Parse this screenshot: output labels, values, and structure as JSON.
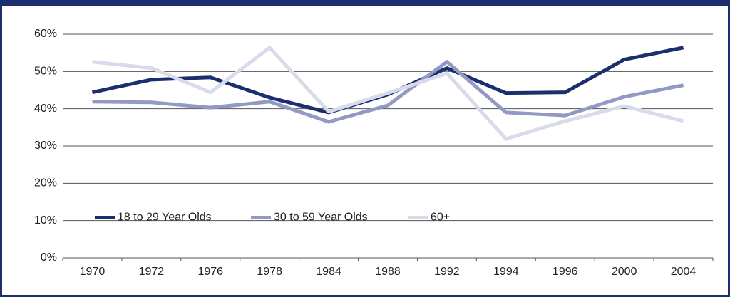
{
  "chart_data": {
    "type": "line",
    "categories": [
      "1970",
      "1972",
      "1976",
      "1978",
      "1984",
      "1988",
      "1992",
      "1994",
      "1996",
      "2000",
      "2004"
    ],
    "series": [
      {
        "name": "18 to 29 Year Olds",
        "color": "#1b2f6e",
        "values": [
          44.4,
          47.8,
          48.4,
          43,
          39,
          43.8,
          50.9,
          44.2,
          44.4,
          53.2,
          56.4
        ]
      },
      {
        "name": "30 to 59 Year Olds",
        "color": "#9499c4",
        "values": [
          41.9,
          41.7,
          40.3,
          41.9,
          36.5,
          40.9,
          52.6,
          39,
          38.2,
          43.2,
          46.3
        ]
      },
      {
        "name": "60+",
        "color": "#d8dbea",
        "values": [
          52.6,
          50.9,
          44.4,
          56.4,
          39.2,
          44.2,
          49.5,
          31.9,
          36.7,
          40.7,
          36.7
        ]
      }
    ],
    "ylim": [
      0,
      60
    ],
    "yticks": [
      {
        "value": 0,
        "label": "0%"
      },
      {
        "value": 10,
        "label": "10%"
      },
      {
        "value": 20,
        "label": "20%"
      },
      {
        "value": 30,
        "label": "30%"
      },
      {
        "value": 40,
        "label": "40%"
      },
      {
        "value": 50,
        "label": "50%"
      },
      {
        "value": 60,
        "label": "60%"
      }
    ],
    "grid": true,
    "legend": "lower left"
  }
}
